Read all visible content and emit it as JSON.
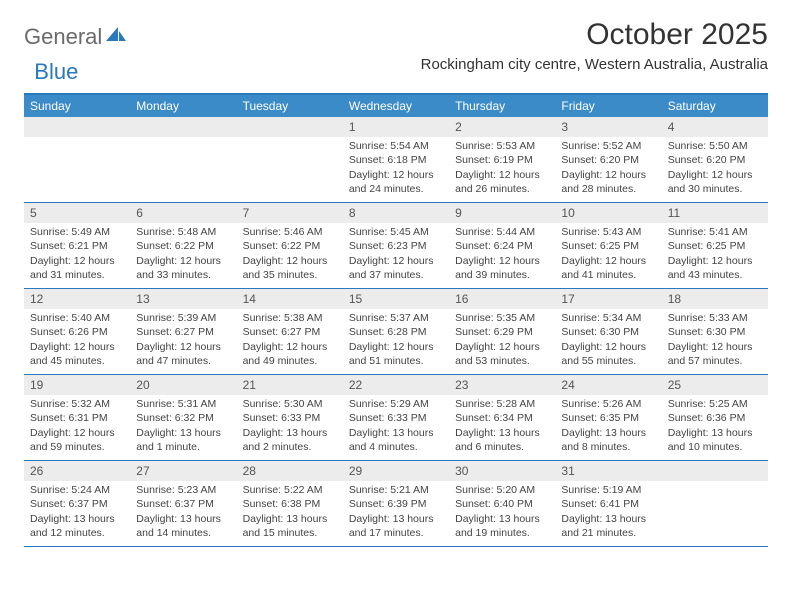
{
  "logo": {
    "text1": "General",
    "text2": "Blue",
    "brand_color": "#2a78bd"
  },
  "title": "October 2025",
  "location": "Rockingham city centre, Western Australia, Australia",
  "colors": {
    "header_bg": "#3b8bc9",
    "header_border": "#2a78bd",
    "row_border": "#2a78bd",
    "daynum_bg": "#ececec",
    "text": "#333333"
  },
  "day_names": [
    "Sunday",
    "Monday",
    "Tuesday",
    "Wednesday",
    "Thursday",
    "Friday",
    "Saturday"
  ],
  "weeks": [
    [
      null,
      null,
      null,
      {
        "n": "1",
        "sr": "Sunrise: 5:54 AM",
        "ss": "Sunset: 6:18 PM",
        "dl1": "Daylight: 12 hours",
        "dl2": "and 24 minutes."
      },
      {
        "n": "2",
        "sr": "Sunrise: 5:53 AM",
        "ss": "Sunset: 6:19 PM",
        "dl1": "Daylight: 12 hours",
        "dl2": "and 26 minutes."
      },
      {
        "n": "3",
        "sr": "Sunrise: 5:52 AM",
        "ss": "Sunset: 6:20 PM",
        "dl1": "Daylight: 12 hours",
        "dl2": "and 28 minutes."
      },
      {
        "n": "4",
        "sr": "Sunrise: 5:50 AM",
        "ss": "Sunset: 6:20 PM",
        "dl1": "Daylight: 12 hours",
        "dl2": "and 30 minutes."
      }
    ],
    [
      {
        "n": "5",
        "sr": "Sunrise: 5:49 AM",
        "ss": "Sunset: 6:21 PM",
        "dl1": "Daylight: 12 hours",
        "dl2": "and 31 minutes."
      },
      {
        "n": "6",
        "sr": "Sunrise: 5:48 AM",
        "ss": "Sunset: 6:22 PM",
        "dl1": "Daylight: 12 hours",
        "dl2": "and 33 minutes."
      },
      {
        "n": "7",
        "sr": "Sunrise: 5:46 AM",
        "ss": "Sunset: 6:22 PM",
        "dl1": "Daylight: 12 hours",
        "dl2": "and 35 minutes."
      },
      {
        "n": "8",
        "sr": "Sunrise: 5:45 AM",
        "ss": "Sunset: 6:23 PM",
        "dl1": "Daylight: 12 hours",
        "dl2": "and 37 minutes."
      },
      {
        "n": "9",
        "sr": "Sunrise: 5:44 AM",
        "ss": "Sunset: 6:24 PM",
        "dl1": "Daylight: 12 hours",
        "dl2": "and 39 minutes."
      },
      {
        "n": "10",
        "sr": "Sunrise: 5:43 AM",
        "ss": "Sunset: 6:25 PM",
        "dl1": "Daylight: 12 hours",
        "dl2": "and 41 minutes."
      },
      {
        "n": "11",
        "sr": "Sunrise: 5:41 AM",
        "ss": "Sunset: 6:25 PM",
        "dl1": "Daylight: 12 hours",
        "dl2": "and 43 minutes."
      }
    ],
    [
      {
        "n": "12",
        "sr": "Sunrise: 5:40 AM",
        "ss": "Sunset: 6:26 PM",
        "dl1": "Daylight: 12 hours",
        "dl2": "and 45 minutes."
      },
      {
        "n": "13",
        "sr": "Sunrise: 5:39 AM",
        "ss": "Sunset: 6:27 PM",
        "dl1": "Daylight: 12 hours",
        "dl2": "and 47 minutes."
      },
      {
        "n": "14",
        "sr": "Sunrise: 5:38 AM",
        "ss": "Sunset: 6:27 PM",
        "dl1": "Daylight: 12 hours",
        "dl2": "and 49 minutes."
      },
      {
        "n": "15",
        "sr": "Sunrise: 5:37 AM",
        "ss": "Sunset: 6:28 PM",
        "dl1": "Daylight: 12 hours",
        "dl2": "and 51 minutes."
      },
      {
        "n": "16",
        "sr": "Sunrise: 5:35 AM",
        "ss": "Sunset: 6:29 PM",
        "dl1": "Daylight: 12 hours",
        "dl2": "and 53 minutes."
      },
      {
        "n": "17",
        "sr": "Sunrise: 5:34 AM",
        "ss": "Sunset: 6:30 PM",
        "dl1": "Daylight: 12 hours",
        "dl2": "and 55 minutes."
      },
      {
        "n": "18",
        "sr": "Sunrise: 5:33 AM",
        "ss": "Sunset: 6:30 PM",
        "dl1": "Daylight: 12 hours",
        "dl2": "and 57 minutes."
      }
    ],
    [
      {
        "n": "19",
        "sr": "Sunrise: 5:32 AM",
        "ss": "Sunset: 6:31 PM",
        "dl1": "Daylight: 12 hours",
        "dl2": "and 59 minutes."
      },
      {
        "n": "20",
        "sr": "Sunrise: 5:31 AM",
        "ss": "Sunset: 6:32 PM",
        "dl1": "Daylight: 13 hours",
        "dl2": "and 1 minute."
      },
      {
        "n": "21",
        "sr": "Sunrise: 5:30 AM",
        "ss": "Sunset: 6:33 PM",
        "dl1": "Daylight: 13 hours",
        "dl2": "and 2 minutes."
      },
      {
        "n": "22",
        "sr": "Sunrise: 5:29 AM",
        "ss": "Sunset: 6:33 PM",
        "dl1": "Daylight: 13 hours",
        "dl2": "and 4 minutes."
      },
      {
        "n": "23",
        "sr": "Sunrise: 5:28 AM",
        "ss": "Sunset: 6:34 PM",
        "dl1": "Daylight: 13 hours",
        "dl2": "and 6 minutes."
      },
      {
        "n": "24",
        "sr": "Sunrise: 5:26 AM",
        "ss": "Sunset: 6:35 PM",
        "dl1": "Daylight: 13 hours",
        "dl2": "and 8 minutes."
      },
      {
        "n": "25",
        "sr": "Sunrise: 5:25 AM",
        "ss": "Sunset: 6:36 PM",
        "dl1": "Daylight: 13 hours",
        "dl2": "and 10 minutes."
      }
    ],
    [
      {
        "n": "26",
        "sr": "Sunrise: 5:24 AM",
        "ss": "Sunset: 6:37 PM",
        "dl1": "Daylight: 13 hours",
        "dl2": "and 12 minutes."
      },
      {
        "n": "27",
        "sr": "Sunrise: 5:23 AM",
        "ss": "Sunset: 6:37 PM",
        "dl1": "Daylight: 13 hours",
        "dl2": "and 14 minutes."
      },
      {
        "n": "28",
        "sr": "Sunrise: 5:22 AM",
        "ss": "Sunset: 6:38 PM",
        "dl1": "Daylight: 13 hours",
        "dl2": "and 15 minutes."
      },
      {
        "n": "29",
        "sr": "Sunrise: 5:21 AM",
        "ss": "Sunset: 6:39 PM",
        "dl1": "Daylight: 13 hours",
        "dl2": "and 17 minutes."
      },
      {
        "n": "30",
        "sr": "Sunrise: 5:20 AM",
        "ss": "Sunset: 6:40 PM",
        "dl1": "Daylight: 13 hours",
        "dl2": "and 19 minutes."
      },
      {
        "n": "31",
        "sr": "Sunrise: 5:19 AM",
        "ss": "Sunset: 6:41 PM",
        "dl1": "Daylight: 13 hours",
        "dl2": "and 21 minutes."
      },
      null
    ]
  ]
}
